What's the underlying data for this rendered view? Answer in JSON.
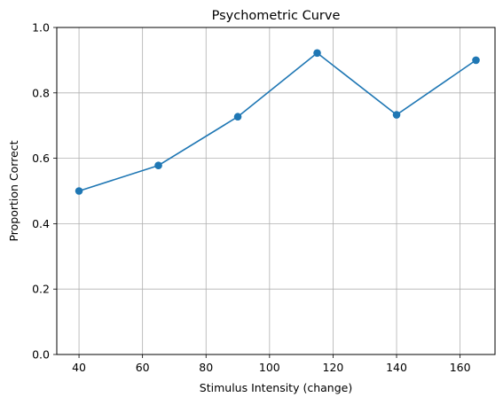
{
  "chart_data": {
    "type": "line",
    "title": "Psychometric Curve",
    "xlabel": "Stimulus Intensity (change)",
    "ylabel": "Proportion Correct",
    "xlim": [
      33,
      171
    ],
    "ylim": [
      0.0,
      1.0
    ],
    "xticks": [
      40,
      60,
      80,
      100,
      120,
      140,
      160
    ],
    "xtick_labels": [
      "40",
      "60",
      "80",
      "100",
      "120",
      "140",
      "160"
    ],
    "yticks": [
      0.0,
      0.2,
      0.4,
      0.6,
      0.8,
      1.0
    ],
    "ytick_labels": [
      "0.0",
      "0.2",
      "0.4",
      "0.6",
      "0.8",
      "1.0"
    ],
    "grid": true,
    "legend": "none",
    "series": [
      {
        "color": "#1f77b4",
        "marker": "circle",
        "x": [
          40,
          65,
          90,
          115,
          140,
          165
        ],
        "y": [
          0.5,
          0.578,
          0.727,
          0.922,
          0.733,
          0.9
        ]
      }
    ]
  },
  "colors": {
    "line": "#1f77b4",
    "grid": "#b0b0b0",
    "axes": "#000000"
  }
}
